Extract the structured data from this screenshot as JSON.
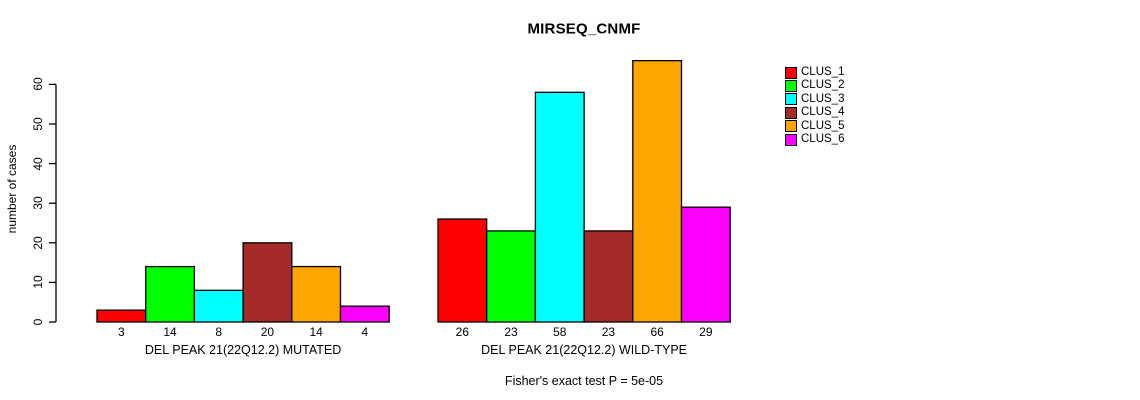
{
  "title": "MIRSEQ_CNMF",
  "y_axis": {
    "label": "number of cases",
    "ticks": [
      0,
      10,
      20,
      30,
      40,
      50,
      60
    ]
  },
  "footnote": "Fisher's exact test P = 5e-05",
  "legend": {
    "items": [
      {
        "label": "CLUS_1",
        "color": "#FF0000"
      },
      {
        "label": "CLUS_2",
        "color": "#00FF00"
      },
      {
        "label": "CLUS_3",
        "color": "#00FFFF"
      },
      {
        "label": "CLUS_4",
        "color": "#A52A2A"
      },
      {
        "label": "CLUS_5",
        "color": "#FFA500"
      },
      {
        "label": "CLUS_6",
        "color": "#FF00FF"
      }
    ]
  },
  "chart_data": {
    "type": "bar",
    "title": "MIRSEQ_CNMF",
    "xlabel": "",
    "ylabel": "number of cases",
    "ylim": [
      0,
      60
    ],
    "yticks": [
      0,
      10,
      20,
      30,
      40,
      50,
      60
    ],
    "grid": false,
    "legend_position": "right",
    "bar_value_labels_shown": true,
    "categories": [
      "DEL PEAK 21(22Q12.2) MUTATED",
      "DEL PEAK 21(22Q12.2) WILD-TYPE"
    ],
    "series": [
      {
        "name": "CLUS_1",
        "color": "#FF0000",
        "values": [
          3,
          26
        ]
      },
      {
        "name": "CLUS_2",
        "color": "#00FF00",
        "values": [
          14,
          23
        ]
      },
      {
        "name": "CLUS_3",
        "color": "#00FFFF",
        "values": [
          8,
          58
        ]
      },
      {
        "name": "CLUS_4",
        "color": "#A52A2A",
        "values": [
          20,
          23
        ]
      },
      {
        "name": "CLUS_5",
        "color": "#FFA500",
        "values": [
          14,
          66
        ]
      },
      {
        "name": "CLUS_6",
        "color": "#FF00FF",
        "values": [
          4,
          29
        ]
      }
    ],
    "annotation": "Fisher's exact test P = 5e-05"
  }
}
